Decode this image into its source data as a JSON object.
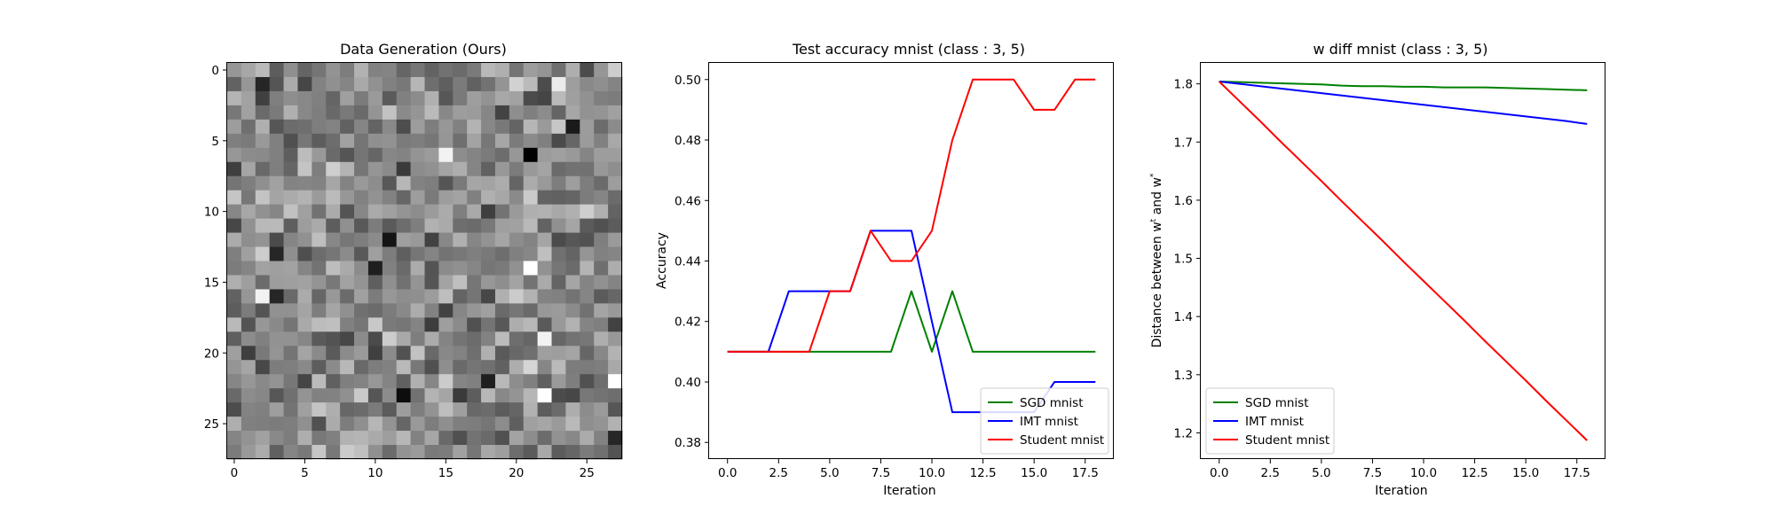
{
  "chart_data": [
    {
      "type": "heatmap",
      "title": "Data Generation (Ours)",
      "xlabel": "",
      "ylabel": "",
      "rows": 28,
      "cols": 28,
      "colormap": "gray",
      "xticks": [
        "0",
        "5",
        "10",
        "15",
        "20",
        "25"
      ],
      "yticks": [
        "0",
        "5",
        "10",
        "15",
        "20",
        "25"
      ],
      "tick_values": [
        0,
        5,
        10,
        15,
        20,
        25
      ],
      "highlights": [
        {
          "row": 6,
          "col": 21,
          "value": 0.0
        },
        {
          "row": 12,
          "col": 11,
          "value": 0.08
        },
        {
          "row": 14,
          "col": 10,
          "value": 0.12
        },
        {
          "row": 13,
          "col": 3,
          "value": 0.15
        },
        {
          "row": 16,
          "col": 3,
          "value": 0.15
        },
        {
          "row": 22,
          "col": 18,
          "value": 0.12
        },
        {
          "row": 23,
          "col": 12,
          "value": 0.05
        },
        {
          "row": 26,
          "col": 27,
          "value": 0.15
        },
        {
          "row": 4,
          "col": 24,
          "value": 0.1
        },
        {
          "row": 1,
          "col": 2,
          "value": 0.15
        },
        {
          "row": 14,
          "col": 21,
          "value": 1.0
        },
        {
          "row": 23,
          "col": 22,
          "value": 1.0
        },
        {
          "row": 22,
          "col": 27,
          "value": 1.0
        },
        {
          "row": 19,
          "col": 22,
          "value": 0.95
        },
        {
          "row": 16,
          "col": 2,
          "value": 0.95
        },
        {
          "row": 6,
          "col": 15,
          "value": 0.95
        },
        {
          "row": 1,
          "col": 23,
          "value": 0.92
        }
      ]
    },
    {
      "type": "line",
      "title": "Test accuracy mnist (class : 3, 5)",
      "xlabel": "Iteration",
      "ylabel": "Accuracy",
      "xlim": [
        -0.9,
        18.9
      ],
      "ylim": [
        0.3745,
        0.5055
      ],
      "xticks": [
        0,
        2.5,
        5,
        7.5,
        10,
        12.5,
        15,
        17.5
      ],
      "xtick_labels": [
        "0.0",
        "2.5",
        "5.0",
        "7.5",
        "10.0",
        "12.5",
        "15.0",
        "17.5"
      ],
      "yticks": [
        0.38,
        0.4,
        0.42,
        0.44,
        0.46,
        0.48,
        0.5
      ],
      "ytick_labels": [
        "0.38",
        "0.40",
        "0.42",
        "0.44",
        "0.46",
        "0.48",
        "0.50"
      ],
      "legend_position": "lower-right",
      "x": [
        0,
        1,
        2,
        3,
        4,
        5,
        6,
        7,
        8,
        9,
        10,
        11,
        12,
        13,
        14,
        15,
        16,
        17,
        18
      ],
      "series": [
        {
          "name": "SGD mnist",
          "color": "#008000",
          "values": [
            0.41,
            0.41,
            0.41,
            0.41,
            0.41,
            0.41,
            0.41,
            0.41,
            0.41,
            0.43,
            0.41,
            0.43,
            0.41,
            0.41,
            0.41,
            0.41,
            0.41,
            0.41,
            0.41
          ]
        },
        {
          "name": "IMT mnist",
          "color": "#0000ff",
          "values": [
            0.41,
            0.41,
            0.41,
            0.43,
            0.43,
            0.43,
            0.43,
            0.45,
            0.45,
            0.45,
            0.42,
            0.39,
            0.39,
            0.39,
            0.39,
            0.39,
            0.4,
            0.4,
            0.4
          ]
        },
        {
          "name": "Student mnist",
          "color": "#ff0000",
          "values": [
            0.41,
            0.41,
            0.41,
            0.41,
            0.41,
            0.43,
            0.43,
            0.45,
            0.44,
            0.44,
            0.45,
            0.48,
            0.5,
            0.5,
            0.5,
            0.49,
            0.49,
            0.5,
            0.5
          ]
        }
      ]
    },
    {
      "type": "line",
      "title": "w diff mnist (class : 3, 5)",
      "xlabel": "Iteration",
      "ylabel": "Distance between w",
      "ylabel_sup1": "t",
      "ylabel_mid": " and w",
      "ylabel_sup2": "*",
      "xlim": [
        -0.9,
        18.9
      ],
      "ylim": [
        1.155,
        1.836
      ],
      "xticks": [
        0,
        2.5,
        5,
        7.5,
        10,
        12.5,
        15,
        17.5
      ],
      "xtick_labels": [
        "0.0",
        "2.5",
        "5.0",
        "7.5",
        "10.0",
        "12.5",
        "15.0",
        "17.5"
      ],
      "yticks": [
        1.2,
        1.3,
        1.4,
        1.5,
        1.6,
        1.7,
        1.8
      ],
      "ytick_labels": [
        "1.2",
        "1.3",
        "1.4",
        "1.5",
        "1.6",
        "1.7",
        "1.8"
      ],
      "legend_position": "lower-left",
      "x": [
        0,
        1,
        2,
        3,
        4,
        5,
        6,
        7,
        8,
        9,
        10,
        11,
        12,
        13,
        14,
        15,
        16,
        17,
        18
      ],
      "series": [
        {
          "name": "SGD mnist",
          "color": "#008000",
          "values": [
            1.804,
            1.803,
            1.802,
            1.801,
            1.8,
            1.799,
            1.797,
            1.796,
            1.796,
            1.795,
            1.795,
            1.794,
            1.794,
            1.794,
            1.793,
            1.792,
            1.791,
            1.79,
            1.789
          ]
        },
        {
          "name": "IMT mnist",
          "color": "#0000ff",
          "values": [
            1.804,
            1.8,
            1.796,
            1.792,
            1.788,
            1.784,
            1.78,
            1.776,
            1.772,
            1.768,
            1.764,
            1.76,
            1.756,
            1.752,
            1.748,
            1.744,
            1.74,
            1.736,
            1.731
          ]
        },
        {
          "name": "Student mnist",
          "color": "#ff0000",
          "values": [
            1.804,
            1.77,
            1.736,
            1.701,
            1.667,
            1.633,
            1.598,
            1.564,
            1.53,
            1.495,
            1.461,
            1.427,
            1.393,
            1.358,
            1.324,
            1.29,
            1.255,
            1.221,
            1.187
          ]
        }
      ]
    }
  ]
}
